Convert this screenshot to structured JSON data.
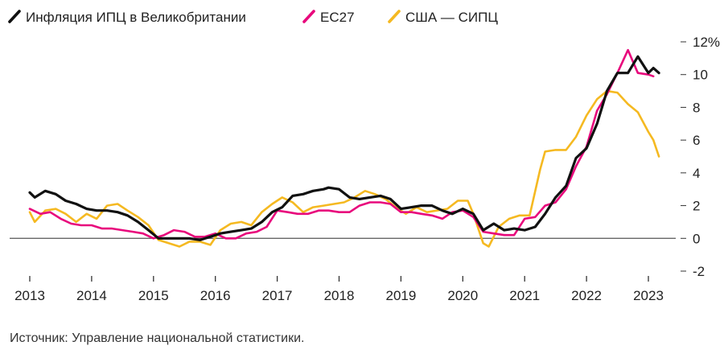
{
  "chart_data": {
    "type": "line",
    "title": "",
    "xlabel": "",
    "ylabel": "",
    "unit_suffix": "%",
    "ylim": [
      -2,
      12
    ],
    "yticks": [
      -2,
      0,
      2,
      4,
      6,
      8,
      10,
      12
    ],
    "ytick_labels": [
      "-2",
      "0",
      "2",
      "4",
      "6",
      "8",
      "10",
      "12%"
    ],
    "xlim": [
      2013,
      2023.3
    ],
    "xticks": [
      2013,
      2014,
      2015,
      2016,
      2017,
      2018,
      2019,
      2020,
      2021,
      2022,
      2023
    ],
    "xtick_labels": [
      "2013",
      "2014",
      "2015",
      "2016",
      "2017",
      "2018",
      "2019",
      "2020",
      "2021",
      "2022",
      "2023"
    ],
    "zero_line": true,
    "legend_position": "top-left",
    "series": [
      {
        "name": "Инфляция ИПЦ в Великобритании",
        "color": "#111111",
        "x": [
          2013.0,
          2013.08,
          2013.25,
          2013.42,
          2013.58,
          2013.75,
          2013.92,
          2014.08,
          2014.25,
          2014.42,
          2014.58,
          2014.75,
          2014.92,
          2015.08,
          2015.25,
          2015.42,
          2015.58,
          2015.75,
          2015.92,
          2016.08,
          2016.25,
          2016.42,
          2016.58,
          2016.75,
          2016.92,
          2017.08,
          2017.25,
          2017.42,
          2017.58,
          2017.75,
          2017.83,
          2018.0,
          2018.17,
          2018.33,
          2018.5,
          2018.67,
          2018.83,
          2019.0,
          2019.17,
          2019.33,
          2019.5,
          2019.67,
          2019.83,
          2020.0,
          2020.17,
          2020.33,
          2020.5,
          2020.67,
          2020.83,
          2021.0,
          2021.17,
          2021.33,
          2021.5,
          2021.67,
          2021.83,
          2022.0,
          2022.17,
          2022.33,
          2022.5,
          2022.67,
          2022.83,
          2023.0,
          2023.08,
          2023.17
        ],
        "values": [
          2.8,
          2.5,
          2.9,
          2.7,
          2.3,
          2.1,
          1.8,
          1.7,
          1.7,
          1.6,
          1.4,
          1.0,
          0.5,
          0.0,
          0.0,
          0.0,
          0.0,
          -0.1,
          0.1,
          0.3,
          0.4,
          0.5,
          0.6,
          1.0,
          1.6,
          1.9,
          2.6,
          2.7,
          2.9,
          3.0,
          3.1,
          3.0,
          2.5,
          2.4,
          2.5,
          2.6,
          2.4,
          1.8,
          1.9,
          2.0,
          2.0,
          1.7,
          1.5,
          1.8,
          1.5,
          0.5,
          0.9,
          0.5,
          0.6,
          0.5,
          0.7,
          1.5,
          2.5,
          3.2,
          4.9,
          5.5,
          7.0,
          9.0,
          10.1,
          10.1,
          11.1,
          10.1,
          10.4,
          10.1
        ]
      },
      {
        "name": "ЕС27",
        "color": "#e8087c",
        "x": [
          2013.0,
          2013.17,
          2013.33,
          2013.5,
          2013.67,
          2013.83,
          2014.0,
          2014.17,
          2014.33,
          2014.5,
          2014.67,
          2014.83,
          2015.0,
          2015.17,
          2015.33,
          2015.5,
          2015.67,
          2015.83,
          2016.0,
          2016.17,
          2016.33,
          2016.5,
          2016.67,
          2016.83,
          2017.0,
          2017.17,
          2017.33,
          2017.5,
          2017.67,
          2017.83,
          2018.0,
          2018.17,
          2018.33,
          2018.5,
          2018.67,
          2018.83,
          2019.0,
          2019.17,
          2019.33,
          2019.5,
          2019.67,
          2019.83,
          2020.0,
          2020.17,
          2020.33,
          2020.5,
          2020.67,
          2020.83,
          2021.0,
          2021.17,
          2021.33,
          2021.5,
          2021.67,
          2021.83,
          2022.0,
          2022.17,
          2022.33,
          2022.5,
          2022.67,
          2022.83,
          2023.0,
          2023.08
        ],
        "values": [
          1.8,
          1.5,
          1.6,
          1.2,
          0.9,
          0.8,
          0.8,
          0.6,
          0.6,
          0.5,
          0.4,
          0.3,
          0.0,
          0.2,
          0.5,
          0.4,
          0.1,
          0.1,
          0.3,
          0.0,
          0.0,
          0.3,
          0.4,
          0.7,
          1.7,
          1.6,
          1.5,
          1.5,
          1.7,
          1.7,
          1.6,
          1.6,
          2.0,
          2.2,
          2.2,
          2.1,
          1.6,
          1.6,
          1.5,
          1.4,
          1.2,
          1.6,
          1.7,
          1.3,
          0.4,
          0.3,
          0.2,
          0.2,
          1.2,
          1.3,
          2.0,
          2.2,
          3.0,
          4.4,
          5.6,
          7.8,
          8.8,
          10.1,
          11.5,
          10.1,
          10.0,
          9.9
        ]
      },
      {
        "name": "США — СИПЦ",
        "color": "#f5b921",
        "x": [
          2013.0,
          2013.08,
          2013.25,
          2013.42,
          2013.58,
          2013.75,
          2013.92,
          2014.08,
          2014.25,
          2014.42,
          2014.58,
          2014.75,
          2014.92,
          2015.08,
          2015.25,
          2015.42,
          2015.58,
          2015.75,
          2015.92,
          2016.08,
          2016.25,
          2016.42,
          2016.58,
          2016.75,
          2016.92,
          2017.08,
          2017.25,
          2017.42,
          2017.58,
          2017.75,
          2017.92,
          2018.08,
          2018.25,
          2018.42,
          2018.58,
          2018.75,
          2018.92,
          2019.08,
          2019.25,
          2019.42,
          2019.58,
          2019.75,
          2019.92,
          2020.08,
          2020.17,
          2020.33,
          2020.42,
          2020.58,
          2020.75,
          2020.92,
          2021.08,
          2021.25,
          2021.33,
          2021.5,
          2021.67,
          2021.83,
          2022.0,
          2022.17,
          2022.33,
          2022.5,
          2022.67,
          2022.83,
          2023.0,
          2023.08,
          2023.17
        ],
        "values": [
          1.6,
          1.0,
          1.7,
          1.8,
          1.5,
          1.0,
          1.5,
          1.2,
          2.0,
          2.1,
          1.7,
          1.3,
          0.8,
          -0.1,
          -0.3,
          -0.5,
          -0.2,
          -0.2,
          -0.4,
          0.5,
          0.9,
          1.0,
          0.8,
          1.6,
          2.1,
          2.5,
          2.2,
          1.6,
          1.9,
          2.0,
          2.1,
          2.2,
          2.5,
          2.9,
          2.7,
          2.4,
          1.9,
          1.5,
          1.9,
          1.6,
          1.7,
          1.8,
          2.3,
          2.3,
          1.5,
          -0.3,
          -0.5,
          0.7,
          1.2,
          1.4,
          1.4,
          4.2,
          5.3,
          5.4,
          5.4,
          6.2,
          7.5,
          8.5,
          9.0,
          8.9,
          8.2,
          7.7,
          6.5,
          6.0,
          5.0
        ]
      }
    ]
  },
  "source_note": "Источник: Управление национальной статистики."
}
